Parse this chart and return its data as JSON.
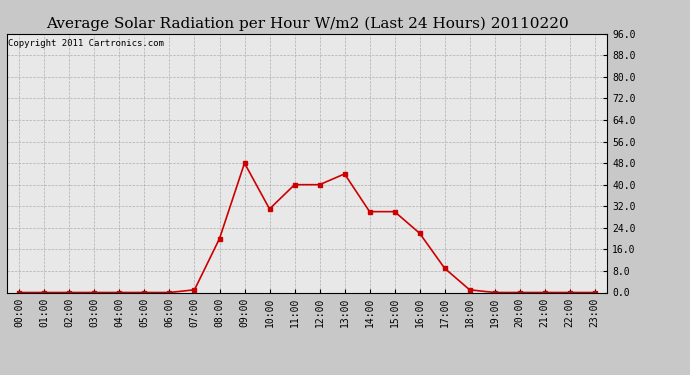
{
  "title": "Average Solar Radiation per Hour W/m2 (Last 24 Hours) 20110220",
  "copyright_text": "Copyright 2011 Cartronics.com",
  "hours": [
    "00:00",
    "01:00",
    "02:00",
    "03:00",
    "04:00",
    "05:00",
    "06:00",
    "07:00",
    "08:00",
    "09:00",
    "10:00",
    "11:00",
    "12:00",
    "13:00",
    "14:00",
    "15:00",
    "16:00",
    "17:00",
    "18:00",
    "19:00",
    "20:00",
    "21:00",
    "22:00",
    "23:00"
  ],
  "values": [
    0,
    0,
    0,
    0,
    0,
    0,
    0,
    1,
    20,
    48,
    31,
    40,
    40,
    44,
    30,
    30,
    22,
    9,
    1,
    0,
    0,
    0,
    0,
    0
  ],
  "ylim": [
    0,
    96
  ],
  "yticks": [
    0.0,
    8.0,
    16.0,
    24.0,
    32.0,
    40.0,
    48.0,
    56.0,
    64.0,
    72.0,
    80.0,
    88.0,
    96.0
  ],
  "line_color": "#cc0000",
  "marker": "s",
  "marker_size": 2.5,
  "background_color": "#c8c8c8",
  "plot_bg_color": "#e8e8e8",
  "grid_color": "#aaaaaa",
  "title_fontsize": 11,
  "tick_fontsize": 7,
  "copyright_fontsize": 6.5
}
